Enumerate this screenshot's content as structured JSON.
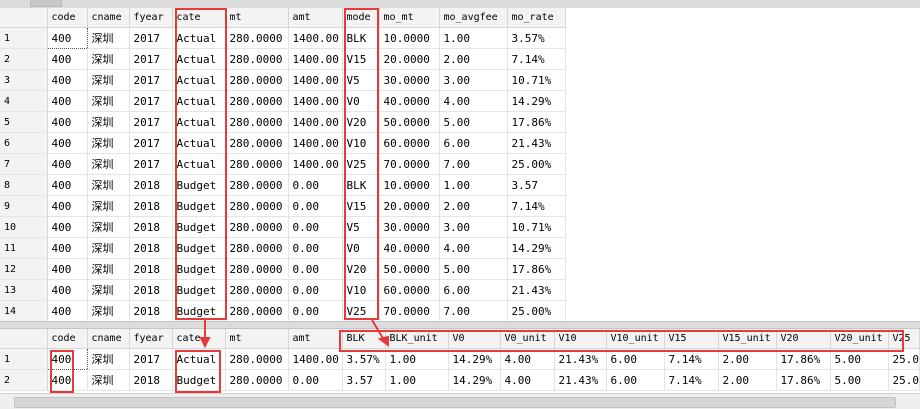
{
  "colors": {
    "highlight": "#e63b3b",
    "header_bg": "#f3f3f3",
    "grid_line": "#e4e4e4"
  },
  "grid1": {
    "headers": [
      "code",
      "cname",
      "fyear",
      "cate",
      "mt",
      "amt",
      "mode",
      "mo_mt",
      "mo_avgfee",
      "mo_rate"
    ],
    "rows": [
      [
        "1",
        "400",
        "深圳",
        "2017",
        "Actual",
        "280.0000",
        "1400.00",
        "BLK",
        "10.0000",
        "1.00",
        "3.57%"
      ],
      [
        "2",
        "400",
        "深圳",
        "2017",
        "Actual",
        "280.0000",
        "1400.00",
        "V15",
        "20.0000",
        "2.00",
        "7.14%"
      ],
      [
        "3",
        "400",
        "深圳",
        "2017",
        "Actual",
        "280.0000",
        "1400.00",
        "V5",
        "30.0000",
        "3.00",
        "10.71%"
      ],
      [
        "4",
        "400",
        "深圳",
        "2017",
        "Actual",
        "280.0000",
        "1400.00",
        "V0",
        "40.0000",
        "4.00",
        "14.29%"
      ],
      [
        "5",
        "400",
        "深圳",
        "2017",
        "Actual",
        "280.0000",
        "1400.00",
        "V20",
        "50.0000",
        "5.00",
        "17.86%"
      ],
      [
        "6",
        "400",
        "深圳",
        "2017",
        "Actual",
        "280.0000",
        "1400.00",
        "V10",
        "60.0000",
        "6.00",
        "21.43%"
      ],
      [
        "7",
        "400",
        "深圳",
        "2017",
        "Actual",
        "280.0000",
        "1400.00",
        "V25",
        "70.0000",
        "7.00",
        "25.00%"
      ],
      [
        "8",
        "400",
        "深圳",
        "2018",
        "Budget",
        "280.0000",
        "0.00",
        "BLK",
        "10.0000",
        "1.00",
        "3.57"
      ],
      [
        "9",
        "400",
        "深圳",
        "2018",
        "Budget",
        "280.0000",
        "0.00",
        "V15",
        "20.0000",
        "2.00",
        "7.14%"
      ],
      [
        "10",
        "400",
        "深圳",
        "2018",
        "Budget",
        "280.0000",
        "0.00",
        "V5",
        "30.0000",
        "3.00",
        "10.71%"
      ],
      [
        "11",
        "400",
        "深圳",
        "2018",
        "Budget",
        "280.0000",
        "0.00",
        "V0",
        "40.0000",
        "4.00",
        "14.29%"
      ],
      [
        "12",
        "400",
        "深圳",
        "2018",
        "Budget",
        "280.0000",
        "0.00",
        "V20",
        "50.0000",
        "5.00",
        "17.86%"
      ],
      [
        "13",
        "400",
        "深圳",
        "2018",
        "Budget",
        "280.0000",
        "0.00",
        "V10",
        "60.0000",
        "6.00",
        "21.43%"
      ],
      [
        "14",
        "400",
        "深圳",
        "2018",
        "Budget",
        "280.0000",
        "0.00",
        "V25",
        "70.0000",
        "7.00",
        "25.00%"
      ]
    ]
  },
  "grid2": {
    "headers": [
      "code",
      "cname",
      "fyear",
      "cate",
      "mt",
      "amt",
      "BLK",
      "BLK_unit",
      "V0",
      "V0_unit",
      "V10",
      "V10_unit",
      "V15",
      "V15_unit",
      "V20",
      "V20_unit",
      "V25"
    ],
    "rows": [
      [
        "1",
        "400",
        "深圳",
        "2017",
        "Actual",
        "280.0000",
        "1400.00",
        "3.57%",
        "1.00",
        "14.29%",
        "4.00",
        "21.43%",
        "6.00",
        "7.14%",
        "2.00",
        "17.86%",
        "5.00",
        "25.0"
      ],
      [
        "2",
        "400",
        "深圳",
        "2018",
        "Budget",
        "280.0000",
        "0.00",
        "3.57",
        "1.00",
        "14.29%",
        "4.00",
        "21.43%",
        "6.00",
        "7.14%",
        "2.00",
        "17.86%",
        "5.00",
        "25.0"
      ]
    ]
  }
}
